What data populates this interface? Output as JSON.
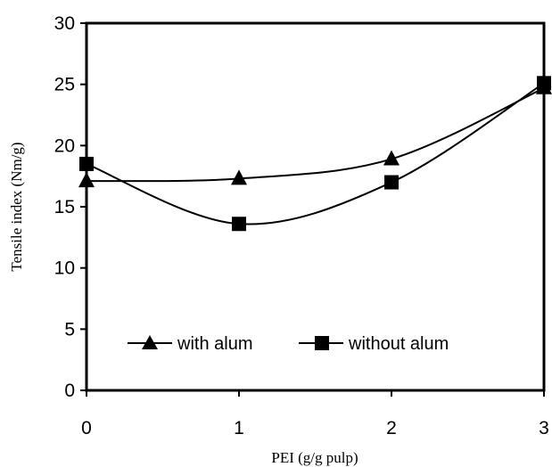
{
  "chart_data": {
    "type": "line",
    "xlabel": "PEI (g/g pulp)",
    "ylabel": "Tensile index (Nm/g)",
    "x": [
      0,
      1,
      2,
      3
    ],
    "x_ticks": [
      "0",
      "1",
      "2",
      "3"
    ],
    "y_ticks": [
      "0",
      "5",
      "10",
      "15",
      "20",
      "25",
      "30"
    ],
    "xlim": [
      0,
      3
    ],
    "ylim": [
      0,
      30
    ],
    "grid": false,
    "legend_position": "bottom-center",
    "series": [
      {
        "name": "with alum",
        "marker": "triangle",
        "values": [
          17.1,
          17.3,
          18.9,
          24.7
        ],
        "color": "#000000"
      },
      {
        "name": "without alum",
        "marker": "square",
        "values": [
          18.5,
          13.6,
          17.0,
          25.1
        ],
        "color": "#000000"
      }
    ]
  }
}
